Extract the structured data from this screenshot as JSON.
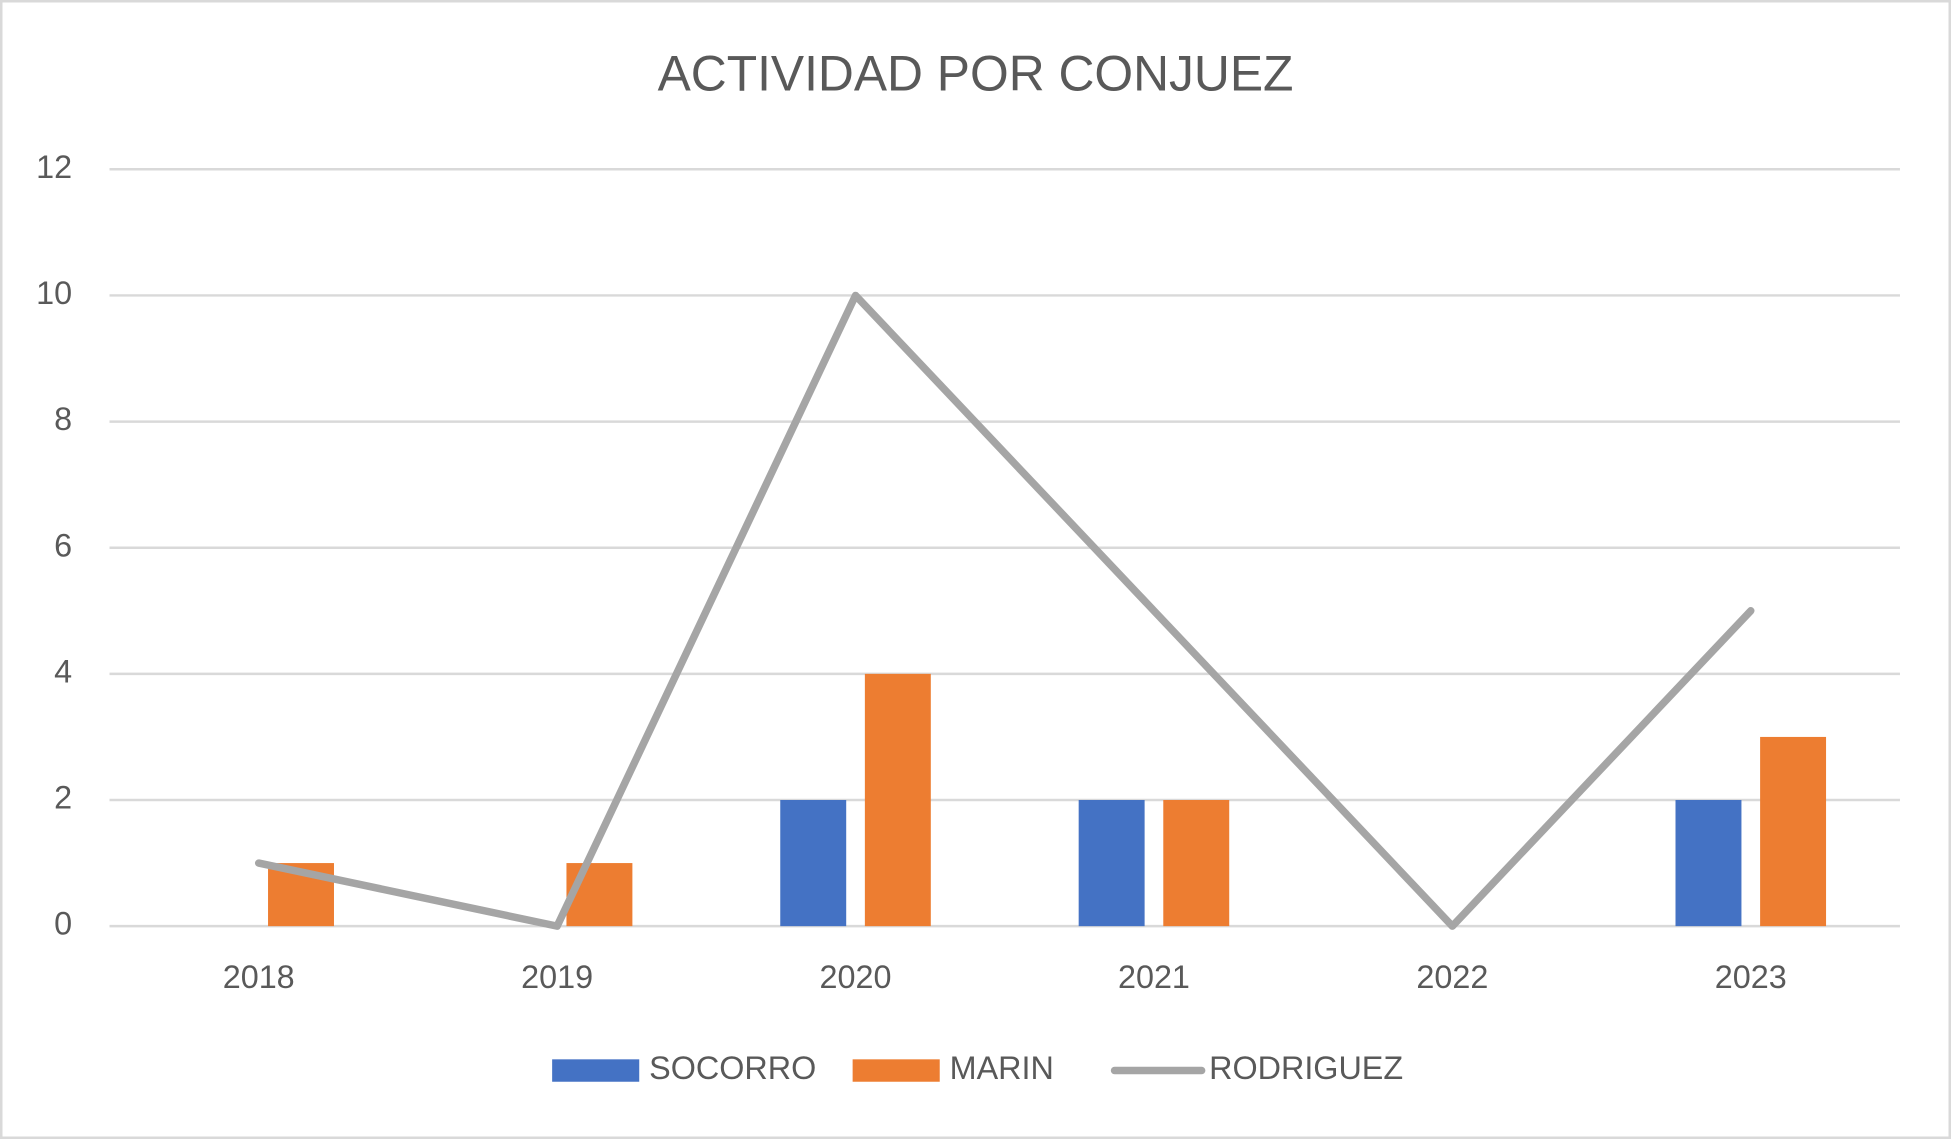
{
  "chart_data": {
    "type": "bar-line",
    "title": "ACTIVIDAD POR CONJUEZ",
    "categories": [
      "2018",
      "2019",
      "2020",
      "2021",
      "2022",
      "2023"
    ],
    "series": [
      {
        "name": "SOCORRO",
        "type": "bar",
        "color": "#4472c4",
        "values": [
          0,
          0,
          2,
          2,
          0,
          2
        ]
      },
      {
        "name": "MARIN",
        "type": "bar",
        "color": "#ed7d31",
        "values": [
          1,
          1,
          4,
          2,
          0,
          3
        ]
      },
      {
        "name": "RODRIGUEZ",
        "type": "line",
        "color": "#a5a5a5",
        "values": [
          1,
          0,
          10,
          5,
          0,
          5
        ]
      }
    ],
    "ylim": [
      0,
      12
    ],
    "yticks": [
      0,
      2,
      4,
      6,
      8,
      10,
      12
    ],
    "grid": true,
    "legend": "bottom"
  }
}
